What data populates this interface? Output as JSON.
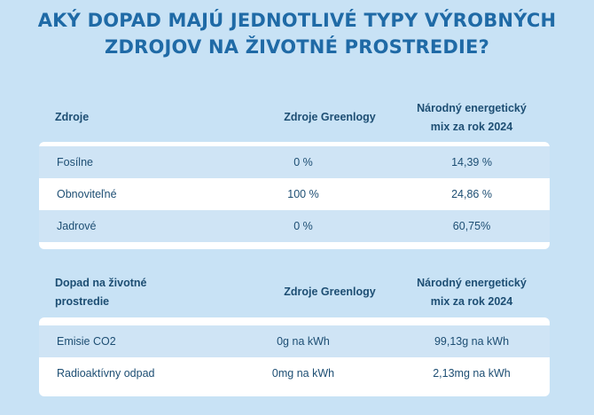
{
  "title": {
    "line1": "AKÝ DOPAD MAJÚ JEDNOTLIVÉ TYPY VÝROBNÝCH",
    "line2": "ZDROJOV NA ŽIVOTNÉ PROSTREDIE?"
  },
  "table1": {
    "headers": {
      "col1": "Zdroje",
      "col2": "Zdroje Greenlogy",
      "col3_line1": "Národný energetický",
      "col3_line2": "mix za rok 2024"
    },
    "rows": [
      {
        "label": "Fosílne",
        "greenlogy": "0 %",
        "national": "14,39 %"
      },
      {
        "label": "Obnoviteľné",
        "greenlogy": "100 %",
        "national": "24,86 %"
      },
      {
        "label": "Jadrové",
        "greenlogy": "0 %",
        "national": "60,75%"
      }
    ]
  },
  "table2": {
    "headers": {
      "col1_line1": "Dopad na životné",
      "col1_line2": "prostredie",
      "col2": "Zdroje Greenlogy",
      "col3_line1": "Národný energetický",
      "col3_line2": "mix za rok 2024"
    },
    "rows": [
      {
        "label": "Emisie CO2",
        "greenlogy": "0g na kWh",
        "national": "99,13g na kWh"
      },
      {
        "label": "Radioaktívny odpad",
        "greenlogy": "0mg na kWh",
        "national": "2,13mg na kWh"
      }
    ]
  }
}
